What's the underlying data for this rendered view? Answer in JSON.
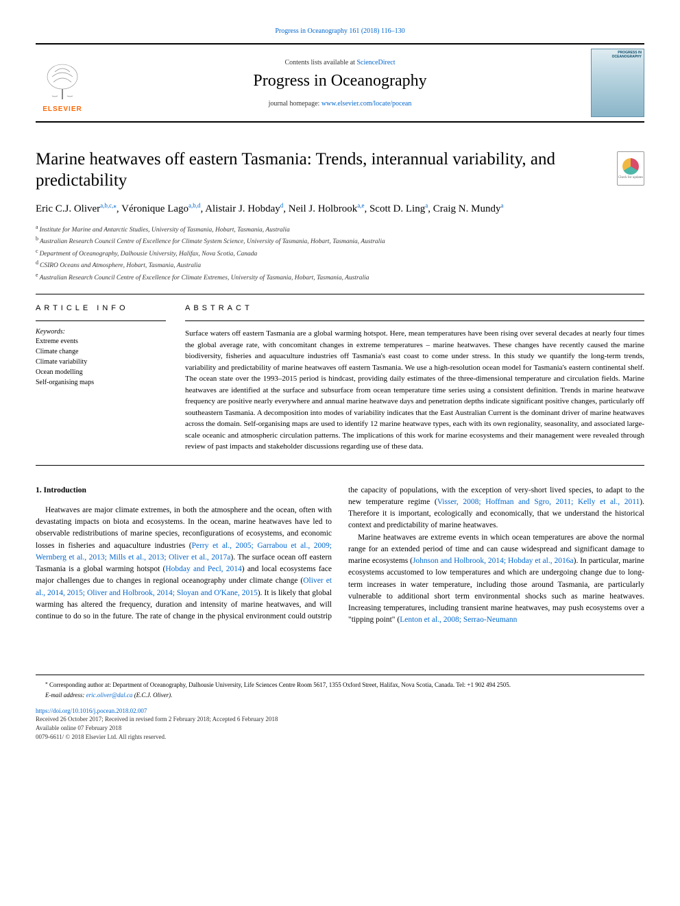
{
  "top_citation": "Progress in Oceanography 161 (2018) 116–130",
  "header": {
    "contents_prefix": "Contents lists available at ",
    "contents_link": "ScienceDirect",
    "journal_name": "Progress in Oceanography",
    "homepage_prefix": "journal homepage: ",
    "homepage_link": "www.elsevier.com/locate/pocean",
    "publisher": "ELSEVIER",
    "cover_title": "PROGRESS IN OCEANOGRAPHY"
  },
  "article": {
    "title": "Marine heatwaves off eastern Tasmania: Trends, interannual variability, and predictability",
    "check_updates": "Check for updates",
    "authors_html": "Eric C.J. Oliver|a,b,c,*|, Véronique Lago|a,b,d|, Alistair J. Hobday|d|, Neil J. Holbrook|a,e|, Scott D. Ling|a|, Craig N. Mundy|a|",
    "authors": [
      {
        "name": "Eric C.J. Oliver",
        "sup": "a,b,c,⁎"
      },
      {
        "name": "Véronique Lago",
        "sup": "a,b,d"
      },
      {
        "name": "Alistair J. Hobday",
        "sup": "d"
      },
      {
        "name": "Neil J. Holbrook",
        "sup": "a,e"
      },
      {
        "name": "Scott D. Ling",
        "sup": "a"
      },
      {
        "name": "Craig N. Mundy",
        "sup": "a"
      }
    ],
    "affiliations": [
      {
        "key": "a",
        "text": "Institute for Marine and Antarctic Studies, University of Tasmania, Hobart, Tasmania, Australia"
      },
      {
        "key": "b",
        "text": "Australian Research Council Centre of Excellence for Climate System Science, University of Tasmania, Hobart, Tasmania, Australia"
      },
      {
        "key": "c",
        "text": "Department of Oceanography, Dalhousie University, Halifax, Nova Scotia, Canada"
      },
      {
        "key": "d",
        "text": "CSIRO Oceans and Atmosphere, Hobart, Tasmania, Australia"
      },
      {
        "key": "e",
        "text": "Australian Research Council Centre of Excellence for Climate Extremes, University of Tasmania, Hobart, Tasmania, Australia"
      }
    ]
  },
  "info": {
    "label": "ARTICLE INFO",
    "keywords_label": "Keywords:",
    "keywords": [
      "Extreme events",
      "Climate change",
      "Climate variability",
      "Ocean modelling",
      "Self-organising maps"
    ]
  },
  "abstract": {
    "label": "ABSTRACT",
    "text": "Surface waters off eastern Tasmania are a global warming hotspot. Here, mean temperatures have been rising over several decades at nearly four times the global average rate, with concomitant changes in extreme temperatures – marine heatwaves. These changes have recently caused the marine biodiversity, fisheries and aquaculture industries off Tasmania's east coast to come under stress. In this study we quantify the long-term trends, variability and predictability of marine heatwaves off eastern Tasmania. We use a high-resolution ocean model for Tasmania's eastern continental shelf. The ocean state over the 1993–2015 period is hindcast, providing daily estimates of the three-dimensional temperature and circulation fields. Marine heatwaves are identified at the surface and subsurface from ocean temperature time series using a consistent definition. Trends in marine heatwave frequency are positive nearly everywhere and annual marine heatwave days and penetration depths indicate significant positive changes, particularly off southeastern Tasmania. A decomposition into modes of variability indicates that the East Australian Current is the dominant driver of marine heatwaves across the domain. Self-organising maps are used to identify 12 marine heatwave types, each with its own regionality, seasonality, and associated large-scale oceanic and atmospheric circulation patterns. The implications of this work for marine ecosystems and their management were revealed through review of past impacts and stakeholder discussions regarding use of these data."
  },
  "intro": {
    "heading": "1. Introduction",
    "p1_pre": "Heatwaves are major climate extremes, in both the atmosphere and the ocean, often with devastating impacts on biota and ecosystems. In the ocean, marine heatwaves have led to observable redistributions of marine species, reconfigurations of ecosystems, and economic losses in fisheries and aquaculture industries (",
    "p1_ref1": "Perry et al., 2005; Garrabou et al., 2009; Wernberg et al., 2013; Mills et al., 2013; Oliver et al., 2017a",
    "p1_mid1": "). The surface ocean off eastern Tasmania is a global warming hotspot (",
    "p1_ref2": "Hobday and Pecl, 2014",
    "p1_mid2": ") and local ecosystems face major challenges due to changes in regional oceanography under climate change (",
    "p1_ref3": "Oliver et al., 2014, 2015; Oliver and Holbrook, 2014; Sloyan and O'Kane, 2015",
    "p1_mid3": "). It is likely that global warming has altered the frequency, duration and intensity of marine heatwaves, and will continue to do so in the future. The rate of change in the physical environment could outstrip the capacity of populations, with the exception of very-short lived species, to adapt to the new temperature regime (",
    "p1_ref4": "Visser, 2008; Hoffman and Sgro, 2011; Kelly et al., 2011",
    "p1_post": "). Therefore it is important, ecologically and economically, that we understand the historical context and predictability of marine heatwaves.",
    "p2_pre": "Marine heatwaves are extreme events in which ocean temperatures are above the normal range for an extended period of time and can cause widespread and significant damage to marine ecosystems (",
    "p2_ref1": "Johnson and Holbrook, 2014; Hobday et al., 2016a",
    "p2_mid1": "). In particular, marine ecosystems accustomed to low temperatures and which are undergoing change due to long-term increases in water temperature, including those around Tasmania, are particularly vulnerable to additional short term environmental shocks such as marine heatwaves. Increasing temperatures, including transient marine heatwaves, may push ecosystems over a \"tipping point\" (",
    "p2_ref2": "Lenton et al., 2008; Serrao-Neumann"
  },
  "footnotes": {
    "corresp_marker": "⁎",
    "corresp_text": "Corresponding author at: Department of Oceanography, Dalhousie University, Life Sciences Centre Room 5617, 1355 Oxford Street, Halifax, Nova Scotia, Canada. Tel: +1 902 494 2505.",
    "email_label": "E-mail address: ",
    "email": "eric.oliver@dal.ca",
    "email_paren": " (E.C.J. Oliver).",
    "doi": "https://doi.org/10.1016/j.pocean.2018.02.007",
    "received": "Received 26 October 2017; Received in revised form 2 February 2018; Accepted 6 February 2018",
    "available": "Available online 07 February 2018",
    "issn": "0079-6611/ © 2018 Elsevier Ltd. All rights reserved."
  },
  "colors": {
    "link": "#0066cc",
    "elsevier_orange": "#ff6600",
    "cover_border": "#5f8fa8",
    "cover_text": "#0a4d6a"
  }
}
